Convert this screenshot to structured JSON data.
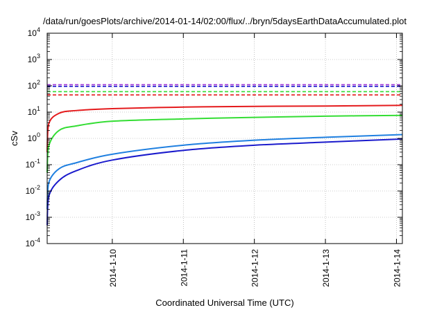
{
  "chart_data": {
    "type": "line",
    "title": "/data/run/goesPlots/archive/2014-01-14/02:00/flux/../bryn/5daysEarthDataAccumulated.plot",
    "xlabel": "Coordinated Universal Time (UTC)",
    "ylabel": "cSv",
    "y_scale": "log",
    "ylim": [
      0.0001,
      10000
    ],
    "y_ticks": [
      {
        "base": "10",
        "exp": "-4"
      },
      {
        "base": "10",
        "exp": "-3"
      },
      {
        "base": "10",
        "exp": "-2"
      },
      {
        "base": "10",
        "exp": "-1"
      },
      {
        "base": "10",
        "exp": "0"
      },
      {
        "base": "10",
        "exp": "1"
      },
      {
        "base": "10",
        "exp": "2"
      },
      {
        "base": "10",
        "exp": "3"
      },
      {
        "base": "10",
        "exp": "4"
      }
    ],
    "xlim": [
      "2014-01-09 02:00",
      "2014-01-14 02:00"
    ],
    "x_ticks": [
      {
        "x": "2014-01-10 00:00",
        "label": "2014-1-10"
      },
      {
        "x": "2014-01-11 00:00",
        "label": "2014-1-11"
      },
      {
        "x": "2014-01-12 00:00",
        "label": "2014-1-12"
      },
      {
        "x": "2014-01-13 00:00",
        "label": "2014-1-13"
      },
      {
        "x": "2014-01-14 00:00",
        "label": "2014-1-14"
      }
    ],
    "grid": true,
    "legend": "none",
    "series": [
      {
        "color": "#e41a1c",
        "style": "solid",
        "points": [
          [
            "2014-01-09 02:00",
            0.3
          ],
          [
            "2014-01-09 02:30",
            3.5
          ],
          [
            "2014-01-09 06:00",
            9
          ],
          [
            "2014-01-09 12:00",
            11.5
          ],
          [
            "2014-01-10 00:00",
            13.5
          ],
          [
            "2014-01-11 00:00",
            15.5
          ],
          [
            "2014-01-12 00:00",
            16.5
          ],
          [
            "2014-01-13 00:00",
            17
          ],
          [
            "2014-01-14 02:00",
            18
          ]
        ]
      },
      {
        "color": "#33dd33",
        "style": "solid",
        "points": [
          [
            "2014-01-09 02:00",
            0.05
          ],
          [
            "2014-01-09 02:30",
            0.5
          ],
          [
            "2014-01-09 06:00",
            2
          ],
          [
            "2014-01-09 12:00",
            3
          ],
          [
            "2014-01-10 00:00",
            4.5
          ],
          [
            "2014-01-11 00:00",
            5.5
          ],
          [
            "2014-01-12 00:00",
            6.3
          ],
          [
            "2014-01-13 00:00",
            7
          ],
          [
            "2014-01-14 02:00",
            7.5
          ]
        ]
      },
      {
        "color": "#1e7fe0",
        "style": "solid",
        "points": [
          [
            "2014-01-09 02:00",
            0.002
          ],
          [
            "2014-01-09 02:30",
            0.02
          ],
          [
            "2014-01-09 06:00",
            0.07
          ],
          [
            "2014-01-09 12:00",
            0.12
          ],
          [
            "2014-01-10 00:00",
            0.25
          ],
          [
            "2014-01-11 00:00",
            0.55
          ],
          [
            "2014-01-12 00:00",
            0.85
          ],
          [
            "2014-01-13 00:00",
            1.1
          ],
          [
            "2014-01-14 02:00",
            1.4
          ]
        ]
      },
      {
        "color": "#1a1acc",
        "style": "solid",
        "points": [
          [
            "2014-01-09 02:00",
            0.0005
          ],
          [
            "2014-01-09 02:30",
            0.006
          ],
          [
            "2014-01-09 06:00",
            0.025
          ],
          [
            "2014-01-09 12:00",
            0.06
          ],
          [
            "2014-01-10 00:00",
            0.15
          ],
          [
            "2014-01-11 00:00",
            0.35
          ],
          [
            "2014-01-12 00:00",
            0.55
          ],
          [
            "2014-01-13 00:00",
            0.72
          ],
          [
            "2014-01-14 02:00",
            0.95
          ]
        ]
      },
      {
        "color": "#e41a1c",
        "style": "dashed",
        "points": [
          [
            "2014-01-09 02:00",
            45
          ],
          [
            "2014-01-14 02:00",
            45
          ]
        ]
      },
      {
        "color": "#33dd33",
        "style": "dashed",
        "points": [
          [
            "2014-01-09 02:00",
            60
          ],
          [
            "2014-01-14 02:00",
            60
          ]
        ]
      },
      {
        "color": "#1a1acc",
        "style": "dashed",
        "points": [
          [
            "2014-01-09 02:00",
            95
          ],
          [
            "2014-01-14 02:00",
            95
          ]
        ]
      },
      {
        "color": "#9b30d9",
        "style": "dashed",
        "points": [
          [
            "2014-01-09 02:00",
            110
          ],
          [
            "2014-01-14 02:00",
            110
          ]
        ]
      }
    ]
  }
}
